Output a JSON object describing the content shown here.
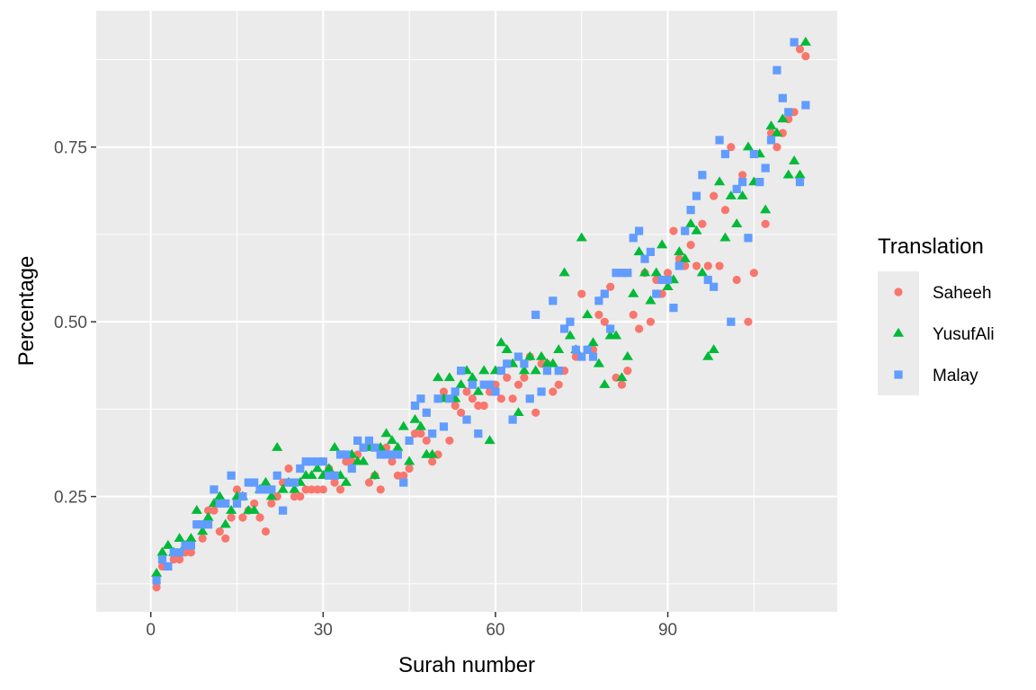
{
  "chart_data": {
    "type": "scatter",
    "title": "",
    "xlabel": "Surah number",
    "ylabel": "Percentage",
    "xlim": [
      -9.5,
      119.5
    ],
    "ylim": [
      0.085,
      0.945
    ],
    "xticks": [
      0,
      30,
      60,
      90
    ],
    "xtick_labels": [
      "0",
      "30",
      "60",
      "90"
    ],
    "yticks": [
      0.25,
      0.5,
      0.75
    ],
    "ytick_labels": [
      "0.25",
      "0.50",
      "0.75"
    ],
    "grid": true,
    "background": "#EBEBEB",
    "legend": {
      "title": "Translation",
      "position": "right",
      "entries": [
        {
          "label": "Saheeh",
          "color": "#F8766D",
          "shape": "circle"
        },
        {
          "label": "YusufAli",
          "color": "#00BA38",
          "shape": "triangle"
        },
        {
          "label": "Malay",
          "color": "#619CFF",
          "shape": "square"
        }
      ]
    },
    "series": [
      {
        "name": "Saheeh",
        "color": "#F8766D",
        "shape": "circle",
        "x": [
          1,
          2,
          3,
          4,
          5,
          6,
          7,
          8,
          9,
          10,
          11,
          12,
          13,
          14,
          15,
          16,
          17,
          18,
          19,
          20,
          21,
          22,
          23,
          24,
          25,
          26,
          27,
          28,
          29,
          30,
          31,
          32,
          33,
          34,
          35,
          36,
          37,
          38,
          39,
          40,
          41,
          42,
          43,
          44,
          45,
          46,
          47,
          48,
          49,
          50,
          51,
          52,
          53,
          54,
          55,
          56,
          57,
          58,
          59,
          60,
          61,
          62,
          63,
          64,
          65,
          66,
          67,
          68,
          69,
          70,
          71,
          72,
          73,
          74,
          75,
          76,
          77,
          78,
          79,
          80,
          81,
          82,
          83,
          84,
          85,
          86,
          87,
          88,
          89,
          90,
          91,
          92,
          93,
          94,
          95,
          96,
          97,
          98,
          99,
          100,
          101,
          102,
          103,
          104,
          105,
          106,
          107,
          108,
          109,
          110,
          111,
          112,
          113,
          114
        ],
        "y": [
          0.12,
          0.15,
          0.15,
          0.16,
          0.16,
          0.17,
          0.17,
          0.21,
          0.19,
          0.23,
          0.23,
          0.2,
          0.19,
          0.22,
          0.26,
          0.22,
          0.23,
          0.24,
          0.22,
          0.2,
          0.24,
          0.25,
          0.27,
          0.29,
          0.25,
          0.25,
          0.26,
          0.26,
          0.26,
          0.26,
          0.29,
          0.27,
          0.26,
          0.3,
          0.3,
          0.31,
          0.32,
          0.27,
          0.28,
          0.26,
          0.32,
          0.3,
          0.28,
          0.28,
          0.29,
          0.34,
          0.34,
          0.33,
          0.3,
          0.31,
          0.4,
          0.33,
          0.38,
          0.37,
          0.4,
          0.39,
          0.38,
          0.38,
          0.4,
          0.41,
          0.39,
          0.42,
          0.39,
          0.41,
          0.42,
          0.45,
          0.37,
          0.44,
          0.44,
          0.4,
          0.41,
          0.43,
          0.5,
          0.45,
          0.54,
          0.46,
          0.46,
          0.51,
          0.5,
          0.55,
          0.42,
          0.41,
          0.43,
          0.51,
          0.49,
          0.57,
          0.5,
          0.56,
          0.54,
          0.57,
          0.63,
          0.59,
          0.58,
          0.61,
          0.58,
          0.64,
          0.58,
          0.68,
          0.58,
          0.66,
          0.75,
          0.56,
          0.71,
          0.5,
          0.57,
          0.7,
          0.64,
          0.77,
          0.75,
          0.77,
          0.79,
          0.8,
          0.89,
          0.88
        ]
      },
      {
        "name": "YusufAli",
        "color": "#00BA38",
        "shape": "triangle",
        "x": [
          1,
          2,
          3,
          4,
          5,
          6,
          7,
          8,
          9,
          10,
          11,
          12,
          13,
          14,
          15,
          16,
          17,
          18,
          19,
          20,
          21,
          22,
          23,
          24,
          25,
          26,
          27,
          28,
          29,
          30,
          31,
          32,
          33,
          34,
          35,
          36,
          37,
          38,
          39,
          40,
          41,
          42,
          43,
          44,
          45,
          46,
          47,
          48,
          49,
          50,
          51,
          52,
          53,
          54,
          55,
          56,
          57,
          58,
          59,
          60,
          61,
          62,
          63,
          64,
          65,
          66,
          67,
          68,
          69,
          70,
          71,
          72,
          73,
          74,
          75,
          76,
          77,
          78,
          79,
          80,
          81,
          82,
          83,
          84,
          85,
          86,
          87,
          88,
          89,
          90,
          91,
          92,
          93,
          94,
          95,
          96,
          97,
          98,
          99,
          100,
          101,
          102,
          103,
          104,
          105,
          106,
          107,
          108,
          109,
          110,
          111,
          112,
          113,
          114
        ],
        "y": [
          0.14,
          0.17,
          0.18,
          0.17,
          0.19,
          0.18,
          0.19,
          0.23,
          0.2,
          0.22,
          0.24,
          0.25,
          0.21,
          0.23,
          0.25,
          0.25,
          0.23,
          0.23,
          0.26,
          0.27,
          0.25,
          0.32,
          0.26,
          0.27,
          0.26,
          0.27,
          0.28,
          0.28,
          0.29,
          0.28,
          0.29,
          0.32,
          0.28,
          0.27,
          0.31,
          0.3,
          0.3,
          0.32,
          0.28,
          0.32,
          0.34,
          0.33,
          0.32,
          0.35,
          0.3,
          0.36,
          0.35,
          0.31,
          0.31,
          0.42,
          0.39,
          0.42,
          0.39,
          0.41,
          0.43,
          0.42,
          0.4,
          0.43,
          0.33,
          0.43,
          0.47,
          0.46,
          0.44,
          0.37,
          0.43,
          0.45,
          0.43,
          0.45,
          0.44,
          0.44,
          0.46,
          0.57,
          0.48,
          0.46,
          0.62,
          0.51,
          0.47,
          0.44,
          0.41,
          0.48,
          0.48,
          0.42,
          0.45,
          0.54,
          0.6,
          0.57,
          0.53,
          0.57,
          0.61,
          0.55,
          0.56,
          0.6,
          0.59,
          0.64,
          0.63,
          0.57,
          0.45,
          0.46,
          0.7,
          0.62,
          0.68,
          0.64,
          0.68,
          0.75,
          0.7,
          0.74,
          0.66,
          0.78,
          0.77,
          0.79,
          0.71,
          0.73,
          0.71,
          0.9
        ]
      },
      {
        "name": "Malay",
        "color": "#619CFF",
        "shape": "square",
        "x": [
          1,
          2,
          3,
          4,
          5,
          6,
          7,
          8,
          9,
          10,
          11,
          12,
          13,
          14,
          15,
          16,
          17,
          18,
          19,
          20,
          21,
          22,
          23,
          24,
          25,
          26,
          27,
          28,
          29,
          30,
          31,
          32,
          33,
          34,
          35,
          36,
          37,
          38,
          39,
          40,
          41,
          42,
          43,
          44,
          45,
          46,
          47,
          48,
          49,
          50,
          51,
          52,
          53,
          54,
          55,
          56,
          57,
          58,
          59,
          60,
          61,
          62,
          63,
          64,
          65,
          66,
          67,
          68,
          69,
          70,
          71,
          72,
          73,
          74,
          75,
          76,
          77,
          78,
          79,
          80,
          81,
          82,
          83,
          84,
          85,
          86,
          87,
          88,
          89,
          90,
          91,
          92,
          93,
          94,
          95,
          96,
          97,
          98,
          99,
          100,
          101,
          102,
          103,
          104,
          105,
          106,
          107,
          108,
          109,
          110,
          111,
          112,
          113,
          114
        ],
        "y": [
          0.13,
          0.16,
          0.15,
          0.17,
          0.17,
          0.18,
          0.18,
          0.21,
          0.21,
          0.21,
          0.26,
          0.24,
          0.24,
          0.28,
          0.24,
          0.25,
          0.27,
          0.27,
          0.26,
          0.26,
          0.26,
          0.28,
          0.23,
          0.27,
          0.27,
          0.29,
          0.3,
          0.3,
          0.3,
          0.3,
          0.28,
          0.28,
          0.31,
          0.31,
          0.29,
          0.33,
          0.32,
          0.33,
          0.32,
          0.31,
          0.31,
          0.31,
          0.31,
          0.27,
          0.33,
          0.38,
          0.39,
          0.37,
          0.34,
          0.39,
          0.35,
          0.39,
          0.4,
          0.43,
          0.36,
          0.41,
          0.34,
          0.41,
          0.41,
          0.4,
          0.43,
          0.44,
          0.36,
          0.45,
          0.44,
          0.39,
          0.51,
          0.4,
          0.43,
          0.53,
          0.43,
          0.49,
          0.5,
          0.46,
          0.45,
          0.46,
          0.45,
          0.53,
          0.54,
          0.49,
          0.57,
          0.57,
          0.57,
          0.62,
          0.63,
          0.59,
          0.6,
          0.54,
          0.56,
          0.56,
          0.52,
          0.58,
          0.63,
          0.66,
          0.68,
          0.71,
          0.56,
          0.55,
          0.76,
          0.74,
          0.5,
          0.69,
          0.7,
          0.62,
          0.74,
          0.7,
          0.72,
          0.76,
          0.86,
          0.82,
          0.8,
          0.9,
          0.7,
          0.81
        ]
      }
    ]
  }
}
